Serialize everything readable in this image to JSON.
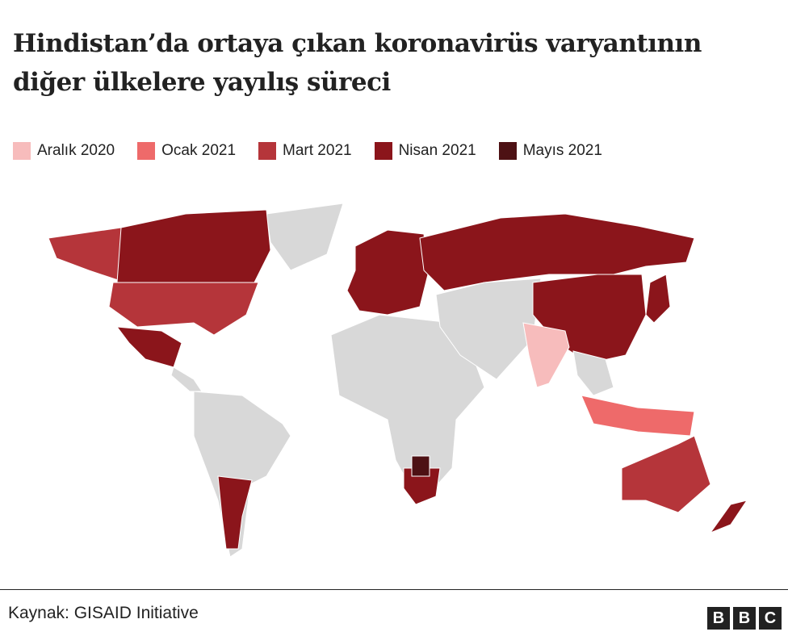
{
  "title_lines": [
    "Hindistan’da ortaya çıkan koronavirüs varyantının",
    "diğer ülkelere yayılış süreci"
  ],
  "legend": [
    {
      "label": "Aralık 2020",
      "color": "#f7bcbc"
    },
    {
      "label": "Ocak 2021",
      "color": "#ee6a6a"
    },
    {
      "label": "Mart 2021",
      "color": "#b5353a"
    },
    {
      "label": "Nisan 2021",
      "color": "#8b151b"
    },
    {
      "label": "Mayıs 2021",
      "color": "#4d1114"
    }
  ],
  "source": "Kaynak: GISAID Initiative",
  "logo": [
    "B",
    "B",
    "C"
  ]
}
